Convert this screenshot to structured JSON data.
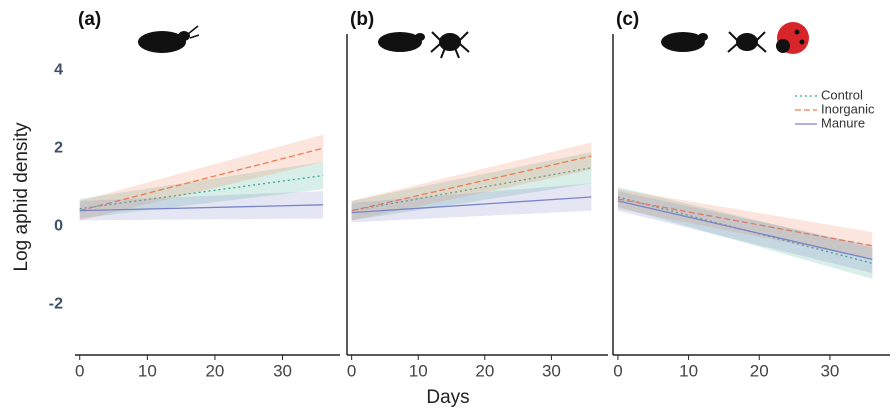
{
  "chart_data": [
    {
      "type": "line",
      "panel_label": "(a)",
      "ylabel": "Log aphid density",
      "x": [
        0,
        36
      ],
      "xlim": [
        -0.7,
        38.5
      ],
      "xticks": [
        0,
        10,
        20,
        30
      ],
      "ylim": [
        -3.3,
        4.8
      ],
      "yticks": [
        4,
        2,
        0,
        -2
      ],
      "left_axis": false,
      "series": [
        {
          "color": "#3aaa8a",
          "dash": "2,3",
          "values": [
            0.45,
            1.3
          ],
          "lower": [
            0.2,
            0.95
          ],
          "upper": [
            0.7,
            1.65
          ]
        },
        {
          "color": "#ef7d4f",
          "dash": "6,3",
          "values": [
            0.4,
            2.0
          ],
          "lower": [
            0.15,
            1.65
          ],
          "upper": [
            0.65,
            2.35
          ]
        },
        {
          "color": "#7b84c8",
          "dash": "",
          "values": [
            0.4,
            0.55
          ],
          "lower": [
            0.15,
            0.2
          ],
          "upper": [
            0.65,
            0.9
          ]
        }
      ]
    },
    {
      "type": "line",
      "panel_label": "(b)",
      "xlabel": "Days",
      "x": [
        0,
        36
      ],
      "xlim": [
        -0.7,
        38.5
      ],
      "xticks": [
        0,
        10,
        20,
        30
      ],
      "ylim": [
        -3.3,
        4.8
      ],
      "left_axis": true,
      "series": [
        {
          "color": "#3aaa8a",
          "dash": "2,3",
          "values": [
            0.4,
            1.5
          ],
          "lower": [
            0.15,
            1.1
          ],
          "upper": [
            0.65,
            1.9
          ]
        },
        {
          "color": "#ef7d4f",
          "dash": "6,3",
          "values": [
            0.4,
            1.8
          ],
          "lower": [
            0.15,
            1.45
          ],
          "upper": [
            0.65,
            2.15
          ]
        },
        {
          "color": "#7b84c8",
          "dash": "",
          "values": [
            0.35,
            0.75
          ],
          "lower": [
            0.1,
            0.4
          ],
          "upper": [
            0.6,
            1.1
          ]
        }
      ]
    },
    {
      "type": "line",
      "panel_label": "(c)",
      "legend": "upper right",
      "x": [
        0,
        36
      ],
      "xlim": [
        -0.7,
        38.5
      ],
      "xticks": [
        0,
        10,
        20,
        30
      ],
      "ylim": [
        -3.3,
        4.8
      ],
      "left_axis": true,
      "series": [
        {
          "name": "Control",
          "color": "#3aaa8a",
          "dash": "2,3",
          "values": [
            0.75,
            -0.95
          ],
          "lower": [
            0.5,
            -1.35
          ],
          "upper": [
            1.0,
            -0.55
          ]
        },
        {
          "name": "Inorganic",
          "color": "#ef7d4f",
          "dash": "6,3",
          "values": [
            0.7,
            -0.5
          ],
          "lower": [
            0.45,
            -0.85
          ],
          "upper": [
            0.95,
            -0.15
          ]
        },
        {
          "name": "Manure",
          "color": "#7b84c8",
          "dash": "",
          "values": [
            0.65,
            -0.85
          ],
          "lower": [
            0.4,
            -1.2
          ],
          "upper": [
            0.9,
            -0.5
          ]
        }
      ]
    }
  ]
}
